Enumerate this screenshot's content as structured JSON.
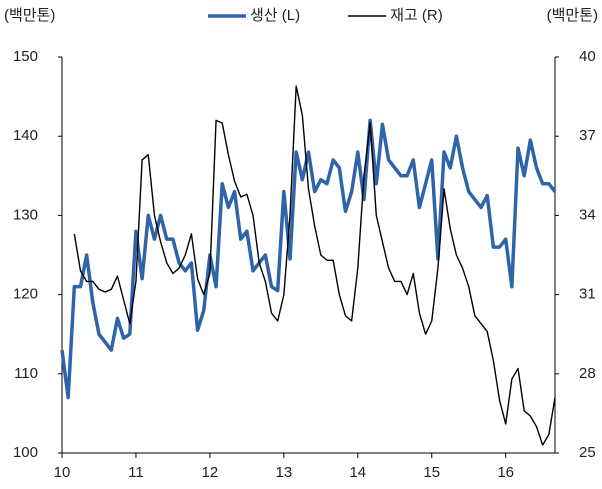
{
  "chart_data": {
    "type": "line",
    "y_label": "(백만톤)",
    "y2_label": "(백만톤)",
    "categories": [
      "10",
      null,
      null,
      null,
      null,
      null,
      null,
      null,
      null,
      null,
      null,
      null,
      "11",
      null,
      null,
      null,
      null,
      null,
      null,
      null,
      null,
      null,
      null,
      null,
      "12",
      null,
      null,
      null,
      null,
      null,
      null,
      null,
      null,
      null,
      null,
      null,
      "13",
      null,
      null,
      null,
      null,
      null,
      null,
      null,
      null,
      null,
      null,
      null,
      "14",
      null,
      null,
      null,
      null,
      null,
      null,
      null,
      null,
      null,
      null,
      null,
      "15",
      null,
      null,
      null,
      null,
      null,
      null,
      null,
      null,
      null,
      null,
      null,
      "16",
      null,
      null,
      null,
      null,
      null,
      null,
      null,
      null
    ],
    "series": [
      {
        "name": "생산 (L)",
        "color": "#2e64a8",
        "axis": "y",
        "values": [
          113,
          107,
          121,
          121,
          125,
          119,
          115,
          114,
          113,
          117,
          114.5,
          115,
          128,
          122,
          130,
          127,
          130,
          127,
          127,
          124,
          123,
          124,
          115.5,
          118,
          125,
          121,
          134,
          131,
          133,
          127,
          128,
          123,
          124,
          125,
          121,
          120.5,
          133,
          124.5,
          138,
          134.5,
          138,
          133,
          134.5,
          134,
          137,
          136,
          130.5,
          133,
          138,
          132,
          142,
          134,
          141.5,
          137,
          136,
          135,
          135,
          137,
          131,
          134,
          137,
          124.5,
          138,
          136,
          140,
          136,
          133,
          132,
          131,
          132.5,
          126,
          126,
          127,
          121,
          138.5,
          135,
          139.5,
          136,
          134,
          134,
          133
        ]
      },
      {
        "name": "재고 (R)",
        "color": "#000000",
        "axis": "y2",
        "values": [
          null,
          null,
          33.3,
          31.9,
          31.5,
          31.5,
          31.2,
          31.1,
          31.2,
          31.7,
          30.8,
          29.9,
          31.5,
          36.1,
          36.3,
          34.0,
          33.0,
          32.2,
          31.8,
          32.0,
          32.5,
          33.3,
          31.6,
          31.0,
          31.8,
          37.6,
          37.5,
          36.3,
          35.3,
          34.7,
          34.8,
          34.0,
          32.2,
          31.5,
          30.3,
          30.0,
          31.0,
          34.0,
          38.9,
          37.8,
          35.0,
          33.6,
          32.5,
          32.3,
          32.3,
          31.0,
          30.2,
          30.0,
          32.0,
          35.5,
          37.5,
          34.0,
          33.0,
          32.0,
          31.5,
          31.5,
          31.0,
          31.8,
          30.3,
          29.5,
          30.0,
          32.0,
          35.0,
          33.5,
          32.5,
          32.0,
          31.3,
          30.2,
          29.9,
          29.6,
          28.5,
          27.0,
          26.1,
          27.8,
          28.2,
          26.6,
          26.4,
          26.0,
          25.3,
          25.7,
          27.1
        ]
      }
    ],
    "ylim": [
      100,
      150
    ],
    "yticks": [
      100,
      110,
      120,
      130,
      140,
      150
    ],
    "y2lim": [
      25,
      40
    ],
    "y2ticks": [
      25,
      28,
      31,
      34,
      37,
      40
    ],
    "legend": "top"
  }
}
